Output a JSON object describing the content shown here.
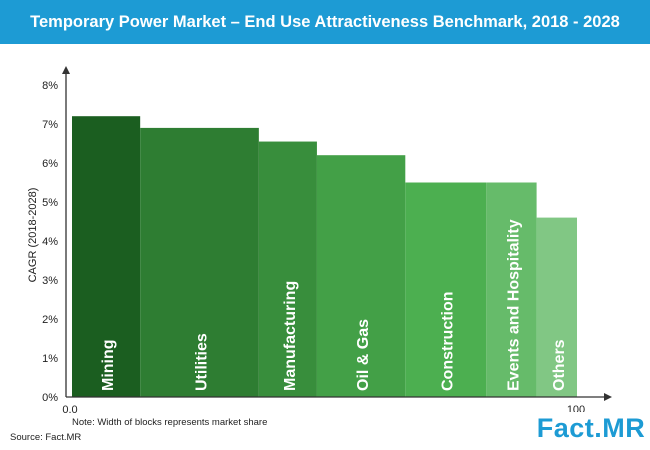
{
  "header": {
    "title": "Temporary Power Market – End Use Attractiveness Benchmark, 2018 - 2028"
  },
  "footer": {
    "source": "Source: Fact.MR",
    "note": "Note: Width of blocks represents market share",
    "logo": "Fact.MR"
  },
  "colors": {
    "header": "#1d9bd4",
    "logo": "#1d9bd4"
  },
  "chart_data": {
    "type": "bar",
    "title": "Temporary Power Market – End Use Attractiveness Benchmark, 2018 - 2028",
    "ylabel": "CAGR (2018-2028)",
    "xlabel": "",
    "ylim": [
      0,
      8
    ],
    "yticks": [
      "0%",
      "1%",
      "2%",
      "3%",
      "4%",
      "5%",
      "6%",
      "7%",
      "8%"
    ],
    "xlim": [
      0,
      100
    ],
    "xticks": [
      "0.0",
      "100"
    ],
    "grid": false,
    "categories": [
      "Mining",
      "Utilities",
      "Manufacturing",
      "Oil & Gas",
      "Construction",
      "Events and Hospitality",
      "Others"
    ],
    "widths": [
      13.5,
      23.5,
      11.5,
      17.5,
      16,
      10,
      8
    ],
    "values": [
      7.2,
      6.9,
      6.55,
      6.2,
      5.5,
      5.5,
      4.6
    ],
    "colors": [
      "#1b5e20",
      "#2e7d32",
      "#388e3c",
      "#43a047",
      "#4caf50",
      "#66bb6a",
      "#81c784"
    ]
  }
}
